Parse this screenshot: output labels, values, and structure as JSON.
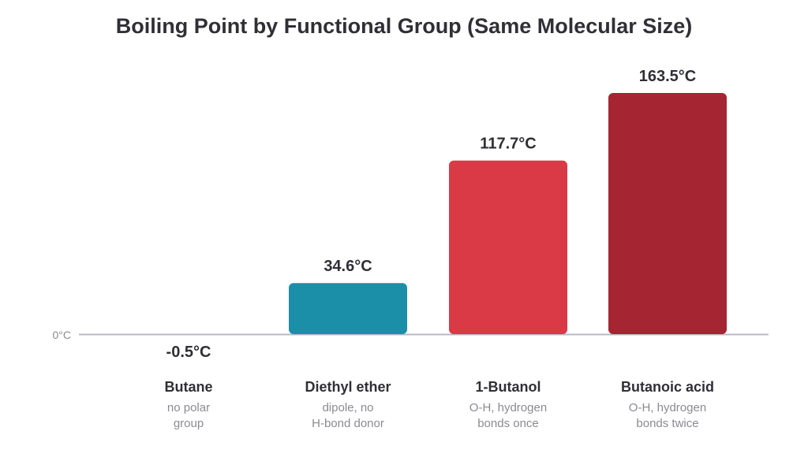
{
  "chart_data": {
    "type": "bar",
    "title": "Boiling Point by Functional Group (Same Molecular Size)",
    "xlabel": "",
    "ylabel": "",
    "baseline_label": "0°C",
    "ylim": [
      0,
      163.5
    ],
    "categories": [
      "Butane",
      "Diethyl ether",
      "1-Butanol",
      "Butanoic acid"
    ],
    "subtitles": [
      [
        "no polar",
        "group"
      ],
      [
        "dipole, no",
        "H-bond donor"
      ],
      [
        "O-H, hydrogen",
        "bonds once"
      ],
      [
        "O-H, hydrogen",
        "bonds twice"
      ]
    ],
    "values": [
      -0.5,
      34.6,
      117.7,
      163.5
    ],
    "value_labels": [
      "-0.5°C",
      "34.6°C",
      "117.7°C",
      "163.5°C"
    ],
    "colors": [
      "#8a8a92",
      "#1c8fa8",
      "#d93a46",
      "#a52532"
    ],
    "grid": false,
    "legend": "none"
  }
}
